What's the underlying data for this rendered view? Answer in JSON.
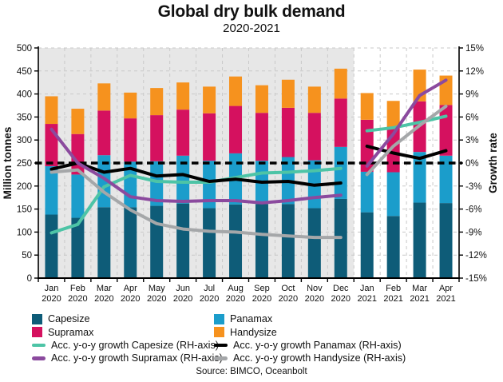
{
  "title": "Global dry bulk demand",
  "subtitle": "2020-2021",
  "source": "Source: BIMCO, Oceanbolt",
  "chart_data": {
    "type": "combo-stacked-bar-line",
    "months": [
      "Jan",
      "Feb",
      "Mar",
      "Apr",
      "May",
      "Jun",
      "Jul",
      "Aug",
      "Sep",
      "Oct",
      "Nov",
      "Dec",
      "Jan",
      "Feb",
      "Mar",
      "Apr"
    ],
    "years": [
      "2020",
      "2020",
      "2020",
      "2020",
      "2020",
      "2020",
      "2020",
      "2020",
      "2020",
      "2020",
      "2020",
      "2020",
      "2021",
      "2021",
      "2021",
      "2021"
    ],
    "bar_series": [
      {
        "name": "Capesize",
        "color": "#0E5C78",
        "values": [
          138,
          131,
          154,
          154,
          157,
          162,
          152,
          160,
          161,
          161,
          152,
          172,
          143,
          135,
          164,
          163
        ]
      },
      {
        "name": "Panamax",
        "color": "#1B9DCB",
        "values": [
          105,
          94,
          113,
          99,
          97,
          104,
          103,
          111,
          94,
          102,
          104,
          113,
          88,
          95,
          110,
          103
        ]
      },
      {
        "name": "Supramax",
        "color": "#D5115F",
        "values": [
          92,
          88,
          97,
          94,
          100,
          100,
          103,
          103,
          104,
          107,
          103,
          105,
          113,
          99,
          110,
          110
        ]
      },
      {
        "name": "Handysize",
        "color": "#F6921E",
        "values": [
          60,
          55,
          59,
          56,
          59,
          59,
          58,
          64,
          60,
          61,
          57,
          65,
          58,
          56,
          69,
          64
        ]
      }
    ],
    "line_series": [
      {
        "name": "Acc. y-o-y growth Capesize (RH-axis)",
        "color": "#4DC4A6",
        "values": [
          -9.1,
          -8.0,
          -3.1,
          -1.6,
          -2.4,
          -2.5,
          -2.5,
          -1.9,
          -1.3,
          -1.2,
          -1.0,
          -0.7,
          4.2,
          4.6,
          5.3,
          6.1
        ]
      },
      {
        "name": "Acc. y-o-y growth Panamax (RH-axis)",
        "color": "#000000",
        "values": [
          -0.8,
          0.0,
          -1.2,
          -0.7,
          -1.7,
          -1.5,
          -2.4,
          -2.1,
          -2.5,
          -2.4,
          -2.9,
          -2.6,
          2.2,
          1.3,
          0.6,
          1.6
        ]
      },
      {
        "name": "Acc. y-o-y growth Supramax (RH-axis)",
        "color": "#8B4A9E",
        "values": [
          4.4,
          0.0,
          -2.0,
          -4.4,
          -4.9,
          -5.0,
          -4.9,
          -4.9,
          -5.2,
          -4.9,
          -4.5,
          -4.2,
          -0.4,
          3.8,
          8.8,
          10.8
        ]
      },
      {
        "name": "Acc. y-o-y growth Handysize (RH-axis)",
        "color": "#A5A7A9",
        "values": [
          -1.2,
          -0.9,
          -3.8,
          -6.1,
          -7.9,
          -8.6,
          -8.9,
          -9.0,
          -9.3,
          -9.5,
          -9.7,
          -9.7,
          -1.5,
          2.2,
          4.9,
          7.4
        ]
      }
    ],
    "line_break_after_index": 11,
    "left_axis": {
      "label": "Million tonnes",
      "min": 0,
      "max": 500,
      "step": 50,
      "suffix": ""
    },
    "right_axis": {
      "label": "Growth rate",
      "min": -15,
      "max": 15,
      "step": 3,
      "suffix": "%"
    },
    "zero_line_right_value": 0,
    "shaded_region_months": 12,
    "shaded_color": "#E7E7E7",
    "gridline_color": "#C9C9C9",
    "legend_position": "bottom"
  }
}
